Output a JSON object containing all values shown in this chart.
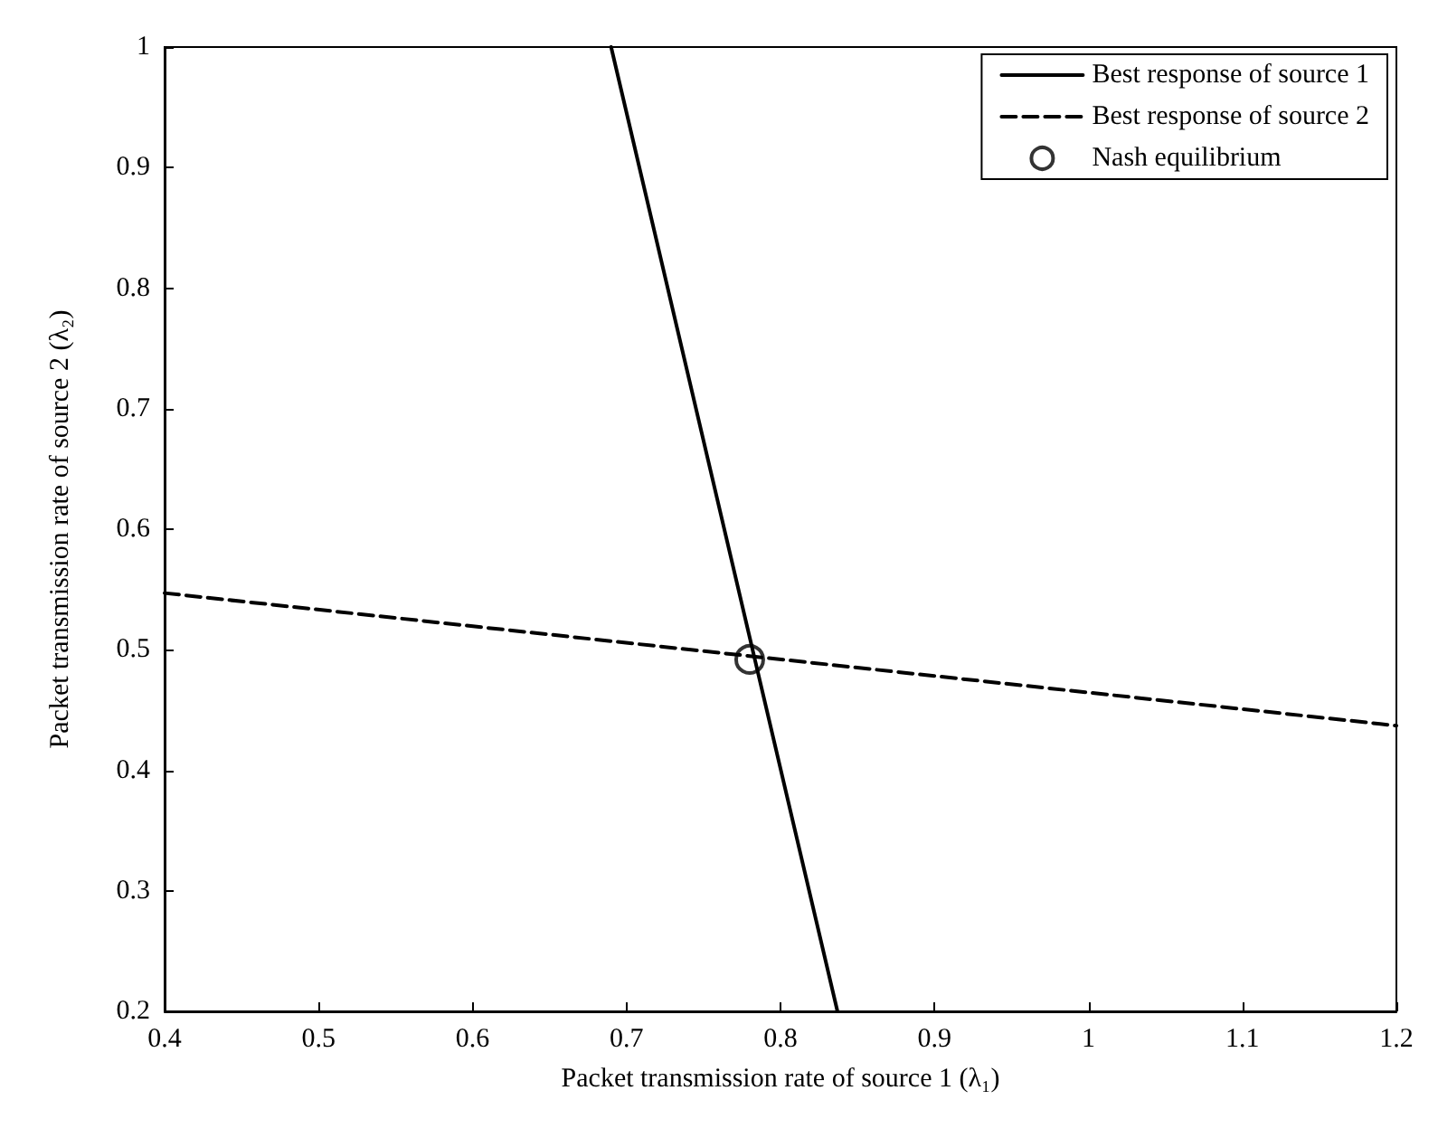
{
  "chart_data": {
    "type": "line",
    "xlabel": "Packet transmission rate of source 1 (λ₁)",
    "ylabel": "Packet transmission rate of source 2 (λ₂)",
    "xlim": [
      0.4,
      1.2
    ],
    "xticks": [
      0.4,
      0.5,
      0.6,
      0.7,
      0.8,
      0.9,
      1,
      1.1,
      1.2
    ],
    "ylim": [
      0.2,
      1
    ],
    "yticks": [
      0.2,
      0.3,
      0.4,
      0.5,
      0.6,
      0.7,
      0.8,
      0.9,
      1
    ],
    "grid": false,
    "legend": "top right",
    "series": [
      {
        "name": "Best response of source 1",
        "color": "#000000",
        "line_style": "solid",
        "marker": "none",
        "x": [
          0.69,
          0.837
        ],
        "values": [
          1,
          0.2
        ]
      },
      {
        "name": "Best response of source 2",
        "color": "#000000",
        "line_style": "dashed",
        "marker": "none",
        "x": [
          0.4,
          1.2
        ],
        "values": [
          0.547,
          0.437
        ]
      },
      {
        "name": "Nash equilibrium",
        "color": "#000000",
        "type": "scatter",
        "marker": "circle",
        "x": [
          0.78
        ],
        "values": [
          0.492
        ]
      }
    ]
  }
}
